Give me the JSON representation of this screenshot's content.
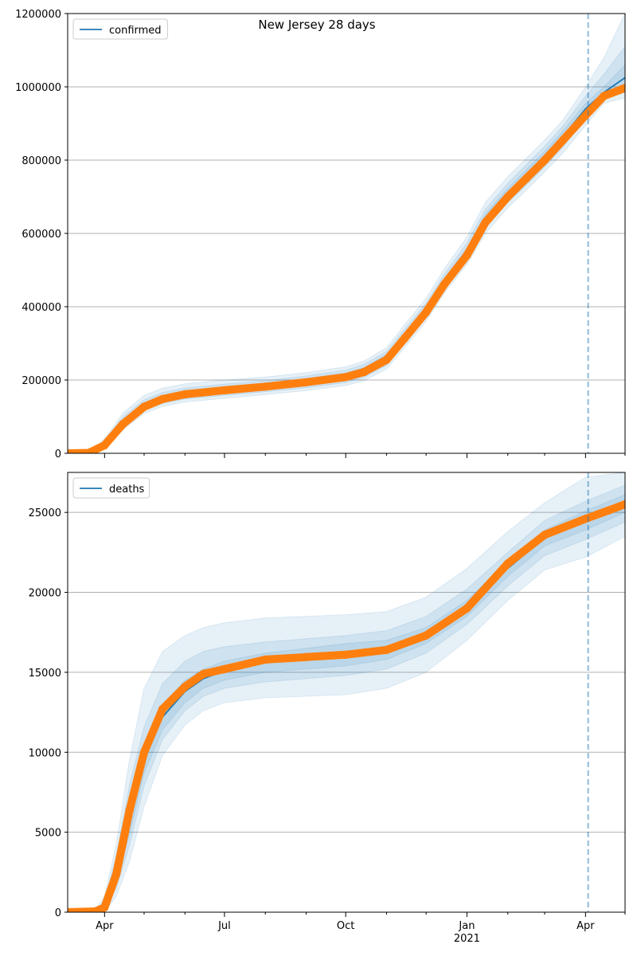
{
  "figure": {
    "title": "New Jersey 28 days"
  },
  "colors": {
    "model_line": "#1f77b4",
    "observed": "#ff7f0e",
    "band": "#1f77b4",
    "grid": "#b0b0b0",
    "vline": "#1f77b4"
  },
  "x_axis": {
    "tick_labels": [
      {
        "date": "2020-04-01",
        "label": "Apr"
      },
      {
        "date": "2020-07-01",
        "label": "Jul"
      },
      {
        "date": "2020-10-01",
        "label": "Oct"
      },
      {
        "date": "2021-01-01",
        "label": "Jan",
        "sublabel": "2021"
      },
      {
        "date": "2021-04-01",
        "label": "Apr"
      }
    ],
    "minor_ticks": [
      "2020-05-01",
      "2020-06-01",
      "2020-08-01",
      "2020-09-01",
      "2020-11-01",
      "2020-12-01",
      "2021-02-01",
      "2021-03-01",
      "2021-05-01"
    ],
    "range": [
      "2020-03-04",
      "2021-05-01"
    ],
    "forecast_start": "2021-04-03"
  },
  "chart_data": [
    {
      "type": "line",
      "panel": "top",
      "series": [
        {
          "name": "confirmed"
        }
      ],
      "legend_position": "upper-left",
      "grid": "y",
      "ylim": [
        0,
        1200000
      ],
      "yticks": [
        0,
        200000,
        400000,
        600000,
        800000,
        1000000,
        1200000
      ],
      "model": [
        {
          "x": "2020-03-04",
          "y": 0
        },
        {
          "x": "2020-03-20",
          "y": 500
        },
        {
          "x": "2020-04-01",
          "y": 25000
        },
        {
          "x": "2020-04-15",
          "y": 85000
        },
        {
          "x": "2020-05-01",
          "y": 130000
        },
        {
          "x": "2020-05-15",
          "y": 150000
        },
        {
          "x": "2020-06-01",
          "y": 163000
        },
        {
          "x": "2020-07-01",
          "y": 174000
        },
        {
          "x": "2020-08-01",
          "y": 183000
        },
        {
          "x": "2020-09-01",
          "y": 195000
        },
        {
          "x": "2020-10-01",
          "y": 210000
        },
        {
          "x": "2020-10-15",
          "y": 225000
        },
        {
          "x": "2020-11-01",
          "y": 260000
        },
        {
          "x": "2020-11-15",
          "y": 320000
        },
        {
          "x": "2020-12-01",
          "y": 390000
        },
        {
          "x": "2020-12-15",
          "y": 470000
        },
        {
          "x": "2021-01-01",
          "y": 550000
        },
        {
          "x": "2021-01-15",
          "y": 640000
        },
        {
          "x": "2021-02-01",
          "y": 710000
        },
        {
          "x": "2021-02-15",
          "y": 760000
        },
        {
          "x": "2021-03-01",
          "y": 810000
        },
        {
          "x": "2021-03-15",
          "y": 865000
        },
        {
          "x": "2021-04-01",
          "y": 940000
        },
        {
          "x": "2021-04-15",
          "y": 985000
        },
        {
          "x": "2021-05-01",
          "y": 1025000
        }
      ],
      "observed": [
        {
          "x": "2020-03-04",
          "y": 0
        },
        {
          "x": "2020-03-20",
          "y": 1000
        },
        {
          "x": "2020-04-01",
          "y": 22000
        },
        {
          "x": "2020-04-15",
          "y": 80000
        },
        {
          "x": "2020-05-01",
          "y": 127000
        },
        {
          "x": "2020-05-15",
          "y": 148000
        },
        {
          "x": "2020-06-01",
          "y": 161000
        },
        {
          "x": "2020-07-01",
          "y": 172000
        },
        {
          "x": "2020-08-01",
          "y": 182000
        },
        {
          "x": "2020-09-01",
          "y": 194000
        },
        {
          "x": "2020-10-01",
          "y": 208000
        },
        {
          "x": "2020-10-15",
          "y": 222000
        },
        {
          "x": "2020-11-01",
          "y": 255000
        },
        {
          "x": "2020-11-15",
          "y": 315000
        },
        {
          "x": "2020-12-01",
          "y": 385000
        },
        {
          "x": "2020-12-15",
          "y": 462000
        },
        {
          "x": "2021-01-01",
          "y": 540000
        },
        {
          "x": "2021-01-15",
          "y": 630000
        },
        {
          "x": "2021-02-01",
          "y": 700000
        },
        {
          "x": "2021-02-15",
          "y": 750000
        },
        {
          "x": "2021-03-01",
          "y": 800000
        },
        {
          "x": "2021-03-15",
          "y": 855000
        },
        {
          "x": "2021-04-01",
          "y": 922000
        },
        {
          "x": "2021-04-15",
          "y": 975000
        },
        {
          "x": "2021-05-01",
          "y": 997000
        }
      ],
      "bands": [
        {
          "lower": [
            0,
            0,
            12000,
            65000,
            108000,
            128000,
            140000,
            150000,
            160000,
            171000,
            185000,
            198000,
            230000,
            290000,
            360000,
            438000,
            515000,
            600000,
            670000,
            718000,
            768000,
            820000,
            895000,
            955000,
            970000
          ],
          "upper": [
            0,
            2000,
            40000,
            110000,
            158000,
            178000,
            190000,
            200000,
            208000,
            220000,
            236000,
            252000,
            288000,
            352000,
            423000,
            505000,
            590000,
            685000,
            755000,
            805000,
            855000,
            910000,
            1000000,
            1080000,
            1200000
          ]
        },
        {
          "lower": [
            0,
            0,
            16000,
            72000,
            116000,
            136000,
            148000,
            158000,
            168000,
            179000,
            193000,
            207000,
            240000,
            302000,
            372000,
            450000,
            528000,
            614000,
            684000,
            732000,
            782000,
            836000,
            912000,
            965000,
            985000
          ],
          "upper": [
            0,
            1500,
            34000,
            100000,
            146000,
            166000,
            178000,
            189000,
            198000,
            211000,
            227000,
            243000,
            278000,
            340000,
            410000,
            490000,
            574000,
            666000,
            737000,
            788000,
            838000,
            894000,
            975000,
            1035000,
            1110000
          ]
        },
        {
          "lower": [
            0,
            0,
            19000,
            78000,
            122000,
            142000,
            155000,
            165000,
            175000,
            186000,
            201000,
            216000,
            250000,
            311000,
            382000,
            461000,
            540000,
            627000,
            697000,
            746000,
            796000,
            850000,
            926000,
            975000,
            1005000
          ],
          "upper": [
            0,
            1000,
            30000,
            92000,
            138000,
            158000,
            171000,
            182000,
            191000,
            204000,
            219000,
            234000,
            270000,
            329000,
            398000,
            479000,
            560000,
            653000,
            723000,
            774000,
            824000,
            880000,
            955000,
            1000000,
            1060000
          ]
        }
      ]
    },
    {
      "type": "line",
      "panel": "bottom",
      "series": [
        {
          "name": "deaths"
        }
      ],
      "legend_position": "upper-left",
      "grid": "y",
      "ylim": [
        0,
        27500
      ],
      "yticks": [
        0,
        5000,
        10000,
        15000,
        20000,
        25000
      ],
      "model": [
        {
          "x": "2020-03-04",
          "y": 0
        },
        {
          "x": "2020-03-25",
          "y": 50
        },
        {
          "x": "2020-04-01",
          "y": 400
        },
        {
          "x": "2020-04-10",
          "y": 2500
        },
        {
          "x": "2020-04-20",
          "y": 6000
        },
        {
          "x": "2020-05-01",
          "y": 9500
        },
        {
          "x": "2020-05-15",
          "y": 12200
        },
        {
          "x": "2020-06-01",
          "y": 13800
        },
        {
          "x": "2020-06-15",
          "y": 14600
        },
        {
          "x": "2020-07-01",
          "y": 15100
        },
        {
          "x": "2020-08-01",
          "y": 15700
        },
        {
          "x": "2020-09-01",
          "y": 15900
        },
        {
          "x": "2020-10-01",
          "y": 16100
        },
        {
          "x": "2020-11-01",
          "y": 16400
        },
        {
          "x": "2020-12-01",
          "y": 17300
        },
        {
          "x": "2021-01-01",
          "y": 19000
        },
        {
          "x": "2021-02-01",
          "y": 21500
        },
        {
          "x": "2021-03-01",
          "y": 23400
        },
        {
          "x": "2021-04-01",
          "y": 24500
        },
        {
          "x": "2021-05-01",
          "y": 25500
        }
      ],
      "observed": [
        {
          "x": "2020-03-04",
          "y": 0
        },
        {
          "x": "2020-03-25",
          "y": 50
        },
        {
          "x": "2020-04-01",
          "y": 300
        },
        {
          "x": "2020-04-10",
          "y": 2400
        },
        {
          "x": "2020-04-20",
          "y": 6400
        },
        {
          "x": "2020-05-01",
          "y": 10000
        },
        {
          "x": "2020-05-15",
          "y": 12700
        },
        {
          "x": "2020-06-01",
          "y": 14100
        },
        {
          "x": "2020-06-15",
          "y": 14900
        },
        {
          "x": "2020-07-01",
          "y": 15200
        },
        {
          "x": "2020-08-01",
          "y": 15800
        },
        {
          "x": "2020-09-01",
          "y": 15950
        },
        {
          "x": "2020-10-01",
          "y": 16100
        },
        {
          "x": "2020-11-01",
          "y": 16400
        },
        {
          "x": "2020-12-01",
          "y": 17300
        },
        {
          "x": "2021-01-01",
          "y": 19000
        },
        {
          "x": "2021-02-01",
          "y": 21800
        },
        {
          "x": "2021-03-01",
          "y": 23600
        },
        {
          "x": "2021-04-01",
          "y": 24600
        },
        {
          "x": "2021-05-01",
          "y": 25500
        }
      ],
      "bands": [
        {
          "lower": [
            0,
            0,
            0,
            1000,
            3200,
            6600,
            9800,
            11700,
            12600,
            13100,
            13400,
            13500,
            13600,
            14000,
            15000,
            17000,
            19500,
            21400,
            22200,
            23500
          ],
          "upper": [
            0,
            150,
            1000,
            4300,
            9600,
            14000,
            16300,
            17300,
            17800,
            18100,
            18400,
            18500,
            18600,
            18800,
            19700,
            21500,
            23800,
            25600,
            27200,
            27500
          ]
        },
        {
          "lower": [
            0,
            0,
            150,
            1500,
            4200,
            7900,
            10800,
            12600,
            13500,
            14000,
            14400,
            14600,
            14800,
            15200,
            16200,
            18000,
            20400,
            22300,
            23300,
            24400
          ],
          "upper": [
            0,
            100,
            700,
            3600,
            8000,
            11600,
            14300,
            15700,
            16300,
            16600,
            16900,
            17100,
            17300,
            17600,
            18500,
            20200,
            22500,
            24500,
            25700,
            26700
          ]
        },
        {
          "lower": [
            0,
            0,
            250,
            1900,
            4900,
            8700,
            11400,
            13100,
            14000,
            14500,
            15000,
            15200,
            15400,
            15800,
            16800,
            18500,
            21000,
            22900,
            23900,
            25000
          ],
          "upper": [
            0,
            80,
            550,
            3100,
            7100,
            10400,
            13000,
            14500,
            15200,
            15700,
            16200,
            16500,
            16800,
            17000,
            17800,
            19500,
            22000,
            23900,
            25100,
            26100
          ]
        }
      ]
    }
  ]
}
